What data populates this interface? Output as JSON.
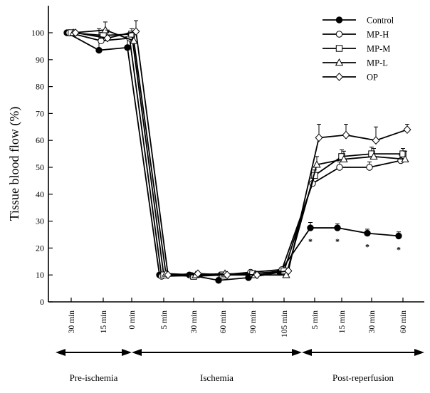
{
  "chart_data": {
    "type": "line",
    "ylabel": "Tissue blood flow (%)",
    "ylim": [
      0,
      105
    ],
    "yticks": [
      0,
      10,
      20,
      30,
      40,
      50,
      60,
      70,
      80,
      90,
      100
    ],
    "categories": [
      "30 min",
      "15 min",
      "0 min",
      "5 min",
      "30 min",
      "60 min",
      "90 min",
      "105 min",
      "5 min",
      "15 min",
      "30 min",
      "60 min"
    ],
    "phases": [
      {
        "label": "Pre-ischemia",
        "start_index": 0,
        "end_index": 2
      },
      {
        "label": "Ischemia",
        "start_index": 2,
        "end_index": 7.6
      },
      {
        "label": "Post-reperfusion",
        "start_index": 7.6,
        "end_index": 11.3
      }
    ],
    "legend": {
      "position": "top-right"
    },
    "series": [
      {
        "name": "Control",
        "marker": "filled-circle",
        "values": [
          100,
          93.5,
          94.5,
          10,
          10,
          8,
          9,
          11,
          27.5,
          27.5,
          25.5,
          24.5
        ],
        "errors": [
          0,
          8,
          4,
          0,
          0,
          0,
          0,
          0,
          2,
          1.5,
          1.5,
          1.5
        ]
      },
      {
        "name": "MP-H",
        "marker": "open-circle",
        "values": [
          100,
          97,
          98,
          9.5,
          9.8,
          10,
          11,
          12,
          44,
          50,
          50,
          52.5
        ],
        "errors": [
          0,
          3,
          2,
          0,
          0,
          0,
          0,
          0,
          2,
          2,
          2,
          2
        ]
      },
      {
        "name": "MP-M",
        "marker": "open-square",
        "values": [
          100,
          99,
          99.5,
          10,
          9.5,
          10,
          10.5,
          11.5,
          47,
          54,
          55,
          55
        ],
        "errors": [
          0,
          2,
          2,
          0,
          0,
          0,
          0,
          0,
          2,
          2.5,
          2.5,
          2
        ]
      },
      {
        "name": "MP-L",
        "marker": "open-triangle",
        "values": [
          100,
          101,
          97,
          10.5,
          10,
          10.5,
          10,
          10,
          51,
          53,
          54,
          53
        ],
        "errors": [
          0,
          3,
          3,
          0,
          0,
          0,
          0,
          0,
          3,
          3,
          3,
          3
        ]
      },
      {
        "name": "OP",
        "marker": "open-diamond",
        "values": [
          100,
          98,
          100.5,
          10,
          10.5,
          10,
          10,
          11.5,
          61,
          62,
          60,
          64
        ],
        "errors": [
          0,
          3,
          4,
          0,
          0,
          0,
          0,
          0,
          5,
          4,
          5,
          2
        ]
      }
    ],
    "annotations": [
      {
        "text": "*",
        "x_index": 8,
        "y": 23
      },
      {
        "text": "*",
        "x_index": 9,
        "y": 23
      },
      {
        "text": "*",
        "x_index": 10,
        "y": 21
      },
      {
        "text": "*",
        "x_index": 11,
        "y": 20
      }
    ]
  }
}
